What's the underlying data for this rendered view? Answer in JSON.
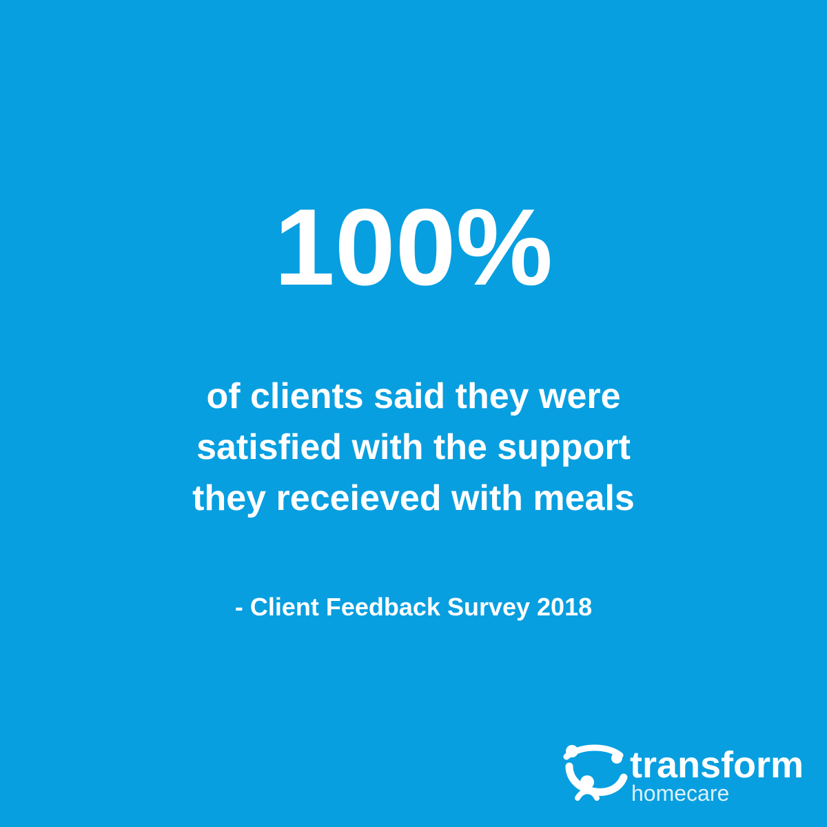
{
  "headline": "100%",
  "body_lines": [
    "of clients said they were",
    "satisfied with the support",
    "they receieved with meals"
  ],
  "source": "- Client Feedback Survey 2018",
  "logo": {
    "name": "transform",
    "tagline": "homecare"
  }
}
